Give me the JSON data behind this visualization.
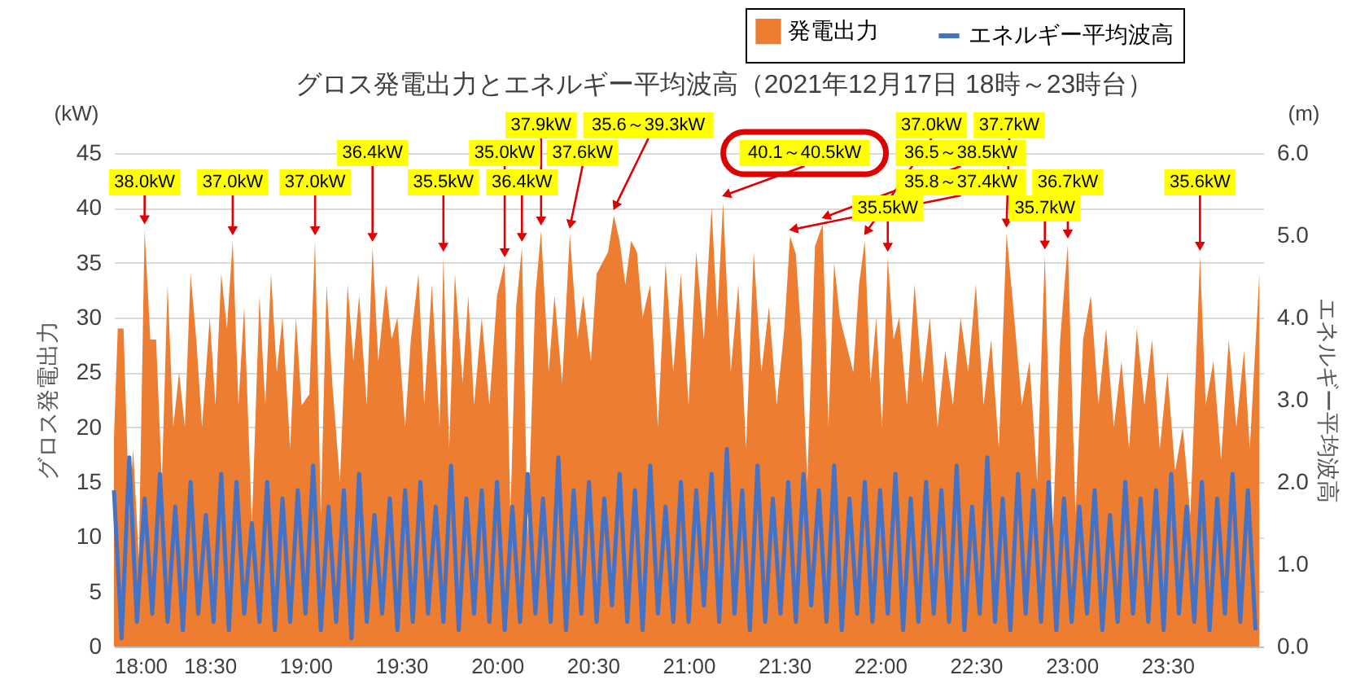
{
  "chart_data": {
    "type": "area",
    "title": "グロス発電出力とエネルギー平均波高（2021年12月17日 18時～23時台）",
    "ylabel": "グロス発電出力",
    "y2label": "エネルギー平均波高",
    "xlim": [
      18,
      24
    ],
    "xticks": [
      {
        "value": 18,
        "label": "18:00"
      },
      {
        "value": 18.5,
        "label": "18:30"
      },
      {
        "value": 19,
        "label": "19:00"
      },
      {
        "value": 19.5,
        "label": "19:30"
      },
      {
        "value": 20,
        "label": "20:00"
      },
      {
        "value": 20.5,
        "label": "20:30"
      },
      {
        "value": 21,
        "label": "21:00"
      },
      {
        "value": 21.5,
        "label": "21:30"
      },
      {
        "value": 22,
        "label": "22:00"
      },
      {
        "value": 22.5,
        "label": "22:30"
      },
      {
        "value": 23,
        "label": "23:00"
      },
      {
        "value": 23.5,
        "label": "23:30"
      }
    ],
    "ylim": [
      0,
      45
    ],
    "yticks": [
      0,
      5,
      10,
      15,
      20,
      25,
      30,
      35,
      40,
      45
    ],
    "y2lim": [
      0,
      6
    ],
    "y2ticks": [
      {
        "value": 0,
        "label": "0.0"
      },
      {
        "value": 1,
        "label": "1.0"
      },
      {
        "value": 2,
        "label": "2.0"
      },
      {
        "value": 3,
        "label": "3.0"
      },
      {
        "value": 4,
        "label": "4.0"
      },
      {
        "value": 5,
        "label": "5.0"
      },
      {
        "value": 6,
        "label": "6.0"
      }
    ],
    "grid": "y",
    "legend": "top right",
    "series": [
      {
        "name": "発電出力",
        "color": "#ed7d31",
        "x": [
          18,
          18.02,
          18.05,
          18.08,
          18.1,
          18.13,
          18.16,
          18.19,
          18.22,
          18.25,
          18.28,
          18.31,
          18.34,
          18.37,
          18.4,
          18.43,
          18.46,
          18.5,
          18.53,
          18.56,
          18.59,
          18.62,
          18.65,
          18.68,
          18.72,
          18.76,
          18.79,
          18.82,
          18.85,
          18.88,
          18.92,
          18.95,
          18.98,
          19.02,
          19.05,
          19.08,
          19.11,
          19.14,
          19.18,
          19.22,
          19.25,
          19.28,
          19.32,
          19.35,
          19.38,
          19.42,
          19.45,
          19.48,
          19.52,
          19.55,
          19.59,
          19.62,
          19.66,
          19.7,
          19.72,
          19.75,
          19.78,
          19.82,
          19.85,
          19.88,
          19.92,
          19.96,
          20,
          20.04,
          20.07,
          20.1,
          20.13,
          20.16,
          20.2,
          20.23,
          20.27,
          20.3,
          20.34,
          20.38,
          20.42,
          20.45,
          20.49,
          20.52,
          20.55,
          20.58,
          20.61,
          20.64,
          20.67,
          20.7,
          20.73,
          20.76,
          20.8,
          20.84,
          20.88,
          20.92,
          20.96,
          21,
          21.04,
          21.08,
          21.12,
          21.15,
          21.18,
          21.22,
          21.26,
          21.3,
          21.34,
          21.38,
          21.42,
          21.46,
          21.5,
          21.53,
          21.56,
          21.59,
          21.62,
          21.66,
          21.7,
          21.73,
          21.76,
          21.79,
          21.86,
          21.89,
          21.92,
          21.95,
          21.98,
          22.01,
          22.04,
          22.07,
          22.1,
          22.14,
          22.18,
          22.22,
          22.26,
          22.3,
          22.34,
          22.38,
          22.42,
          22.46,
          22.5,
          22.54,
          22.58,
          22.62,
          22.66,
          22.7,
          22.74,
          22.78,
          22.82,
          22.86,
          22.9,
          22.94,
          22.98,
          23.02,
          23.06,
          23.1,
          23.14,
          23.18,
          23.22,
          23.26,
          23.3,
          23.34,
          23.38,
          23.42,
          23.46,
          23.5,
          23.54,
          23.58,
          23.62,
          23.67,
          23.7,
          23.74,
          23.78,
          23.82,
          23.86,
          23.9,
          23.93,
          23.98
        ],
        "values": [
          19,
          29,
          29,
          12,
          18,
          8,
          38,
          28,
          28,
          15,
          33,
          20,
          25,
          20,
          34,
          28,
          20,
          30,
          22,
          34,
          29,
          37,
          22,
          31,
          11,
          32,
          22,
          34,
          25,
          30,
          18,
          30,
          22,
          23,
          37,
          12,
          33,
          24,
          15,
          33,
          26,
          32,
          22,
          36.4,
          26,
          33,
          28,
          30,
          20,
          28,
          34,
          22,
          33,
          20,
          35.5,
          18,
          34,
          24,
          32,
          22,
          30,
          22,
          32,
          35,
          12,
          31,
          36.4,
          10,
          32,
          37.9,
          25,
          32,
          24,
          37.6,
          28,
          32,
          26,
          34,
          35,
          36,
          39.3,
          37,
          33,
          37,
          36,
          30,
          33,
          20,
          35,
          25,
          34,
          22,
          36,
          28,
          40.1,
          30,
          40.5,
          25,
          33,
          18,
          36,
          25,
          31,
          22,
          29,
          37.4,
          35.8,
          28,
          15,
          36.5,
          38.5,
          20,
          35,
          30,
          25,
          33,
          37,
          24,
          30,
          20,
          35.5,
          28,
          30,
          22,
          33,
          24,
          30,
          20,
          27,
          22,
          30,
          25,
          33,
          22,
          28,
          18,
          37.7,
          30,
          22,
          26,
          15,
          35.7,
          10,
          28,
          36.7,
          12,
          28,
          32,
          22,
          29,
          20,
          26,
          18,
          29,
          22,
          28,
          18,
          25,
          16,
          20,
          12,
          35.6,
          22,
          26,
          17,
          28,
          20,
          27,
          18,
          34
        ]
      },
      {
        "name": "エネルギー平均波高",
        "color": "#4472c4",
        "type": "line",
        "axis": "y2",
        "x": [
          18,
          18.04,
          18.08,
          18.12,
          18.16,
          18.2,
          18.24,
          18.28,
          18.32,
          18.36,
          18.4,
          18.44,
          18.48,
          18.52,
          18.56,
          18.6,
          18.64,
          18.68,
          18.72,
          18.76,
          18.8,
          18.84,
          18.88,
          18.92,
          18.96,
          19,
          19.04,
          19.08,
          19.12,
          19.16,
          19.2,
          19.24,
          19.28,
          19.32,
          19.36,
          19.4,
          19.44,
          19.48,
          19.52,
          19.56,
          19.6,
          19.64,
          19.68,
          19.72,
          19.76,
          19.8,
          19.84,
          19.88,
          19.92,
          19.96,
          20,
          20.04,
          20.08,
          20.12,
          20.16,
          20.2,
          20.24,
          20.28,
          20.32,
          20.36,
          20.4,
          20.44,
          20.48,
          20.52,
          20.56,
          20.6,
          20.64,
          20.68,
          20.72,
          20.76,
          20.8,
          20.84,
          20.88,
          20.92,
          20.96,
          21,
          21.04,
          21.08,
          21.12,
          21.16,
          21.2,
          21.24,
          21.28,
          21.32,
          21.36,
          21.4,
          21.44,
          21.48,
          21.52,
          21.56,
          21.6,
          21.64,
          21.68,
          21.72,
          21.76,
          21.8,
          21.84,
          21.88,
          21.92,
          21.96,
          22,
          22.04,
          22.08,
          22.12,
          22.16,
          22.2,
          22.24,
          22.28,
          22.32,
          22.36,
          22.4,
          22.44,
          22.48,
          22.52,
          22.56,
          22.6,
          22.64,
          22.68,
          22.72,
          22.76,
          22.8,
          22.84,
          22.88,
          22.92,
          22.96,
          23,
          23.04,
          23.08,
          23.12,
          23.16,
          23.2,
          23.24,
          23.28,
          23.32,
          23.36,
          23.4,
          23.44,
          23.48,
          23.52,
          23.56,
          23.6,
          23.64,
          23.68,
          23.72,
          23.76,
          23.8,
          23.84,
          23.88,
          23.92,
          23.96
        ],
        "values": [
          1.9,
          0.1,
          2.3,
          0.3,
          1.8,
          0.4,
          2.1,
          0.3,
          1.7,
          0.2,
          2.0,
          0.4,
          1.6,
          0.3,
          2.1,
          0.2,
          2.0,
          0.4,
          1.5,
          0.3,
          2.0,
          0.2,
          1.8,
          0.3,
          1.9,
          0.4,
          2.2,
          0.2,
          1.7,
          0.3,
          1.9,
          0.1,
          2.1,
          0.3,
          1.6,
          0.4,
          1.8,
          0.2,
          1.9,
          0.3,
          2.0,
          0.4,
          1.7,
          0.3,
          2.2,
          0.2,
          1.8,
          0.4,
          1.9,
          0.3,
          2.0,
          0.2,
          1.7,
          0.3,
          2.1,
          0.4,
          1.8,
          0.3,
          2.3,
          0.2,
          1.9,
          0.4,
          2.0,
          0.3,
          1.8,
          0.5,
          2.1,
          0.3,
          1.9,
          0.2,
          2.2,
          0.4,
          1.7,
          0.3,
          2.0,
          0.3,
          1.9,
          0.5,
          2.1,
          0.3,
          2.4,
          0.4,
          1.9,
          0.2,
          2.2,
          0.3,
          1.8,
          0.4,
          2.0,
          0.3,
          2.1,
          0.5,
          1.9,
          0.3,
          2.2,
          0.2,
          1.8,
          0.4,
          2.0,
          0.3,
          1.9,
          0.4,
          2.1,
          0.2,
          1.8,
          0.3,
          2.0,
          0.4,
          1.9,
          0.3,
          2.2,
          0.2,
          1.7,
          0.4,
          2.3,
          0.3,
          1.8,
          0.2,
          2.1,
          0.4,
          1.9,
          0.3,
          2.0,
          0.2,
          1.8,
          0.3,
          1.7,
          0.4,
          1.9,
          0.2,
          1.6,
          0.3,
          2.0,
          0.4,
          1.8,
          0.3,
          1.9,
          0.2,
          2.1,
          0.4,
          1.7,
          0.3,
          2.0,
          0.2,
          1.8,
          0.4,
          2.1,
          0.3,
          1.9,
          0.2
        ]
      }
    ],
    "annotations": [
      "(kW)",
      "(m)",
      {
        "text": "38.0kW",
        "x": 18.16,
        "y": 38.0
      },
      {
        "text": "37.0kW",
        "x": 18.62,
        "y": 37.0
      },
      {
        "text": "37.0kW",
        "x": 19.05,
        "y": 37.0
      },
      {
        "text": "36.4kW",
        "x": 19.35,
        "y": 36.4
      },
      {
        "text": "35.5kW",
        "x": 19.72,
        "y": 35.5
      },
      {
        "text": "35.0kW",
        "x": 20.04,
        "y": 35.0
      },
      {
        "text": "36.4kW",
        "x": 20.13,
        "y": 36.4
      },
      {
        "text": "37.9kW",
        "x": 20.23,
        "y": 37.9
      },
      {
        "text": "37.6kW",
        "x": 20.38,
        "y": 37.6
      },
      {
        "text": "35.6～39.3kW",
        "x": 20.61,
        "y": 39.3
      },
      {
        "text": "40.1～40.5kW",
        "x": 21.18,
        "y": 40.5
      },
      {
        "text": "35.8～37.4kW",
        "x": 21.53,
        "y": 37.4
      },
      {
        "text": "36.5～38.5kW",
        "x": 21.7,
        "y": 38.5
      },
      {
        "text": "37.0kW",
        "x": 21.92,
        "y": 37.0
      },
      {
        "text": "35.5kW",
        "x": 22.04,
        "y": 35.5
      },
      {
        "text": "37.7kW",
        "x": 22.66,
        "y": 37.7
      },
      {
        "text": "35.7kW",
        "x": 22.86,
        "y": 35.7
      },
      {
        "text": "36.7kW",
        "x": 22.98,
        "y": 36.7
      },
      {
        "text": "35.6kW",
        "x": 23.67,
        "y": 35.6
      }
    ]
  }
}
